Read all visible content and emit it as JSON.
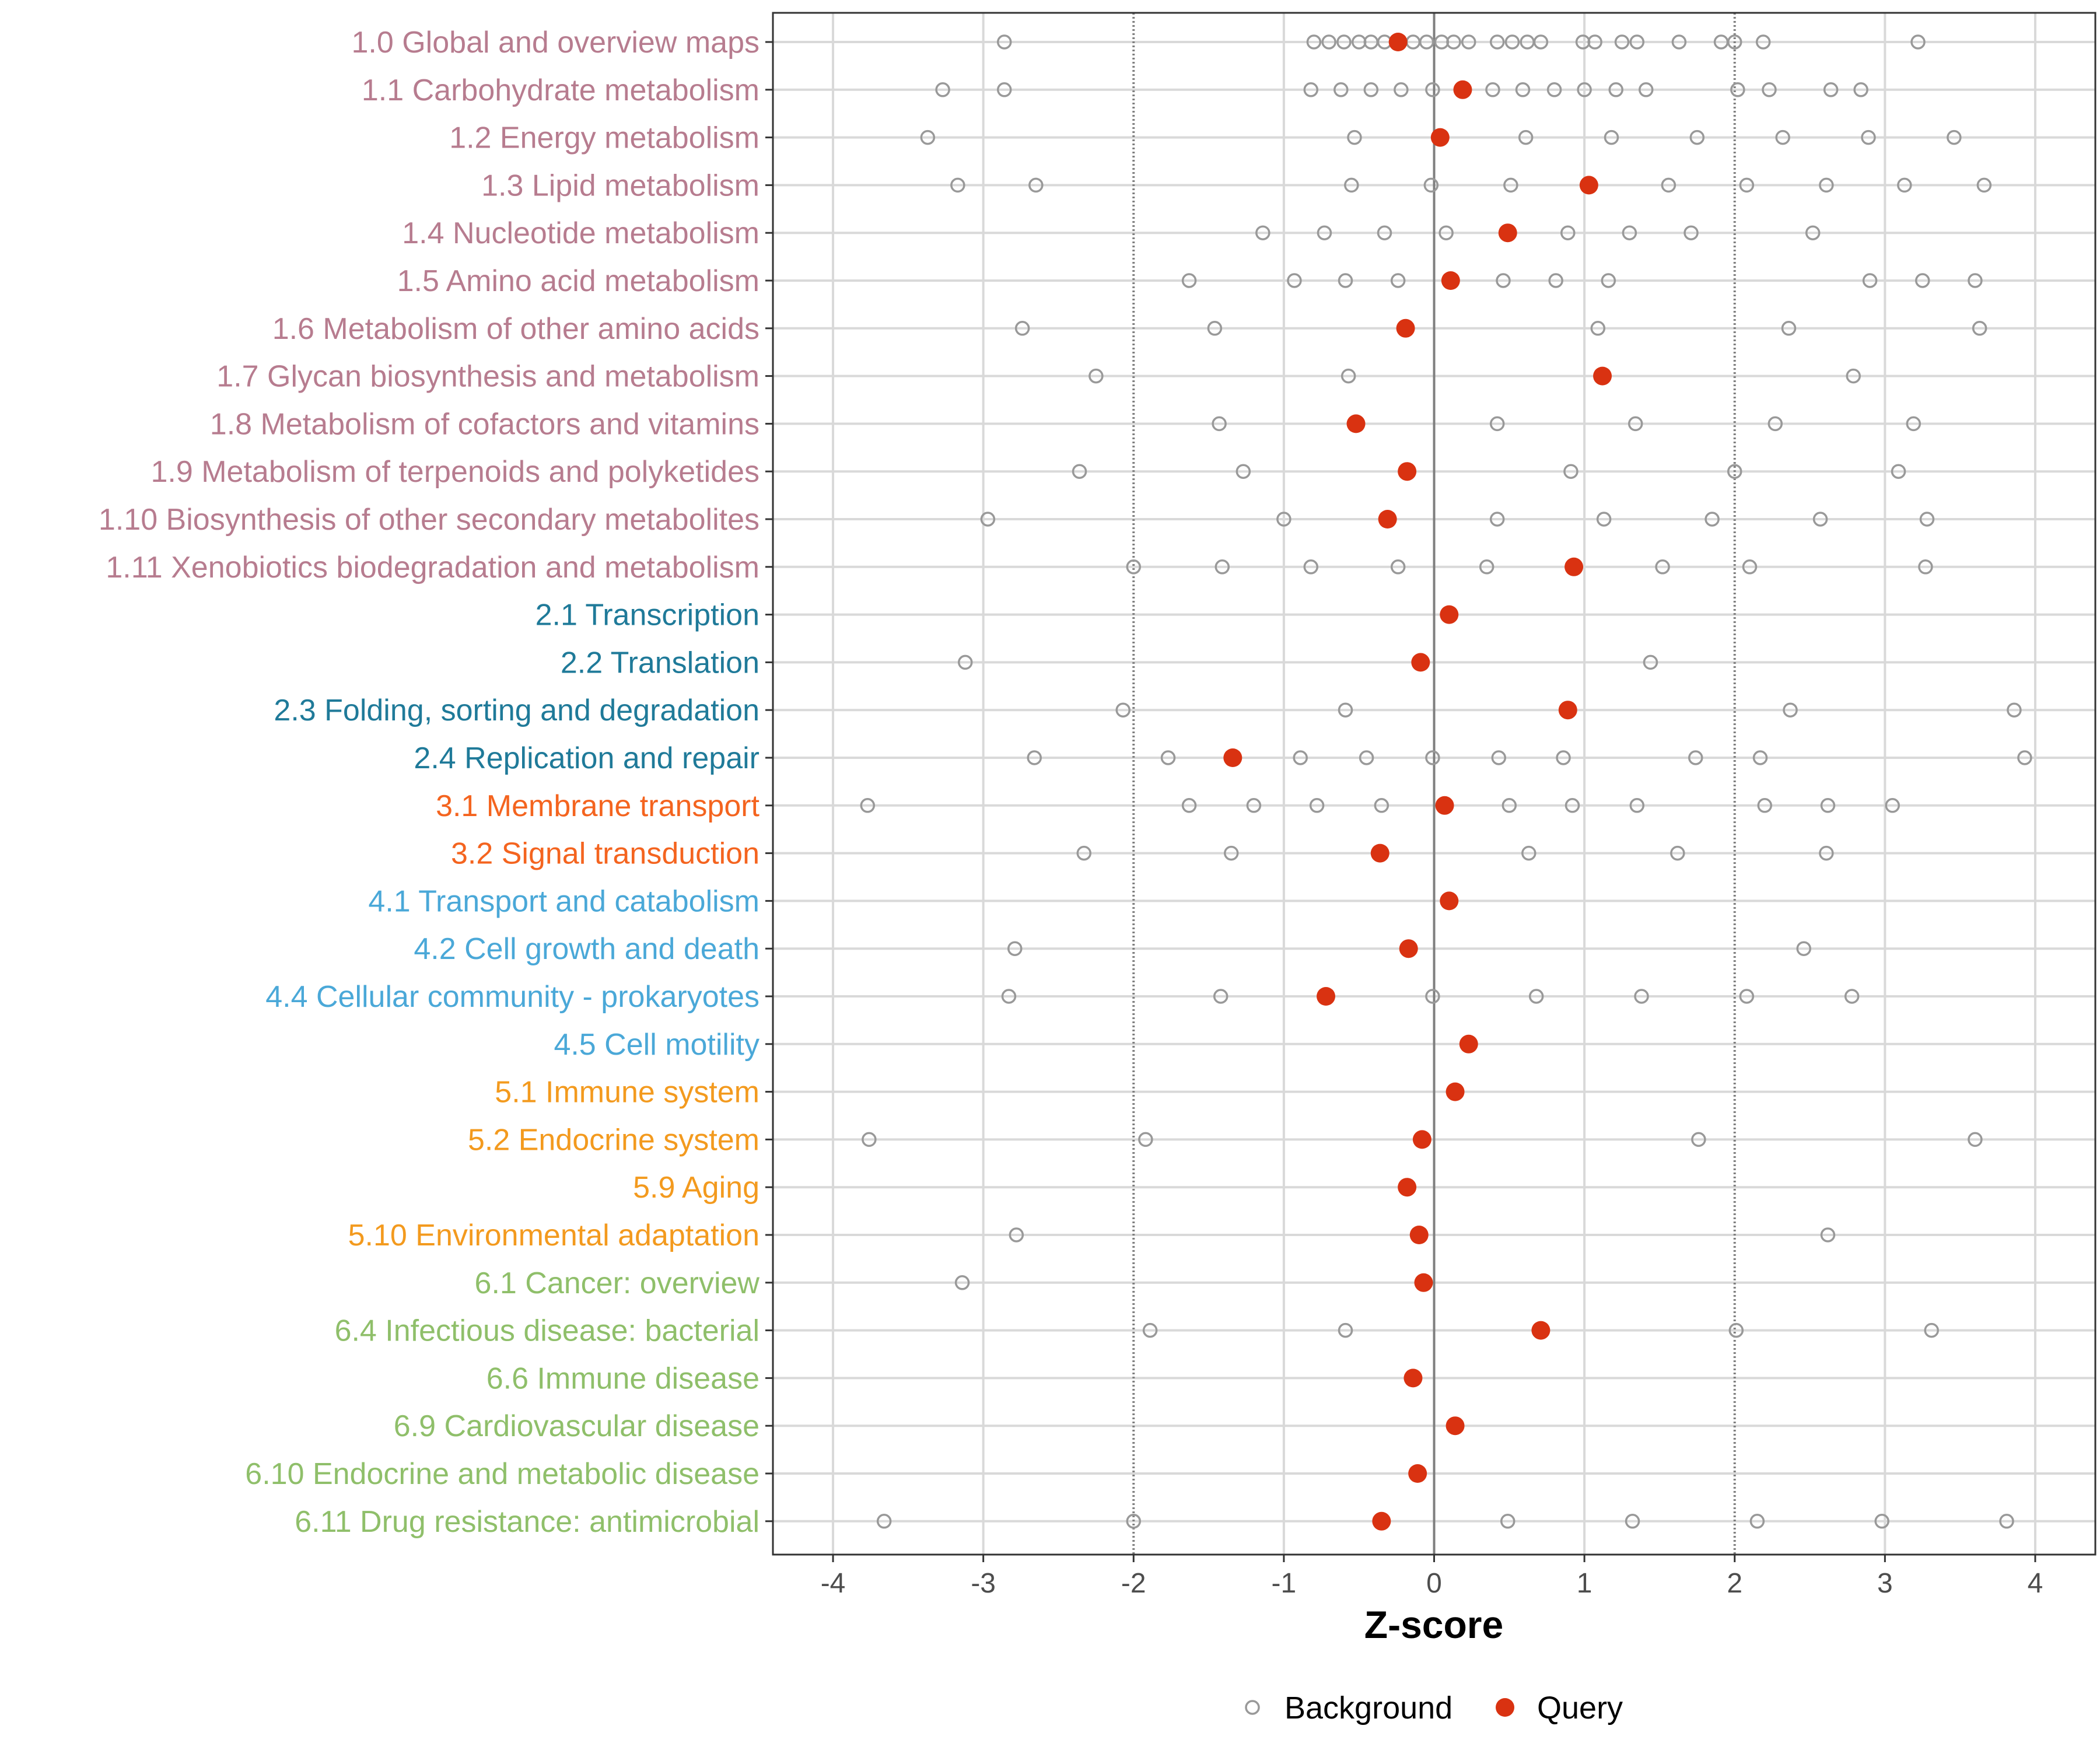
{
  "chart_data": {
    "type": "scatter",
    "xlabel": "Z-score",
    "xlim": [
      -4.4,
      4.4
    ],
    "xticks": [
      -4,
      -3,
      -2,
      -1,
      0,
      1,
      2,
      3,
      4
    ],
    "xtick_labels": [
      "-4",
      "-3",
      "-2",
      "-1",
      "0",
      "1",
      "2",
      "3",
      "4"
    ],
    "reference_lines": {
      "solid": [
        0
      ],
      "dotted": [
        -2,
        2
      ]
    },
    "grid": true,
    "legend": {
      "placement": "bottom",
      "entries": [
        {
          "key": "background",
          "label": "Background",
          "marker": "open-circle"
        },
        {
          "key": "query",
          "label": "Query",
          "marker": "filled-circle"
        }
      ]
    },
    "group_colors": {
      "1": "#b77c8f",
      "2": "#1f7a99",
      "3": "#f4641f",
      "4": "#4aa8d8",
      "5": "#f39a1e",
      "6": "#8fbf6a"
    },
    "colors": {
      "background": "#999999",
      "query": "#d93211",
      "grid": "#d9d9d9",
      "zero": "#7f7f7f",
      "dotted": "#7f7f7f"
    },
    "categories": [
      {
        "label": "1.0 Global and overview maps",
        "group": "1",
        "query": -0.24,
        "background": [
          -2.86,
          -0.8,
          -0.7,
          -0.6,
          -0.5,
          -0.42,
          -0.33,
          -0.14,
          -0.05,
          0.05,
          0.13,
          0.23,
          0.42,
          0.52,
          0.62,
          0.71,
          0.99,
          1.07,
          1.25,
          1.35,
          1.63,
          1.91,
          2.0,
          2.19,
          3.22
        ]
      },
      {
        "label": "1.1 Carbohydrate metabolism",
        "group": "1",
        "query": 0.19,
        "background": [
          -3.27,
          -2.86,
          -0.82,
          -0.62,
          -0.42,
          -0.22,
          -0.01,
          0.39,
          0.59,
          0.8,
          1.0,
          1.21,
          1.41,
          2.02,
          2.23,
          2.64,
          2.84
        ]
      },
      {
        "label": "1.2 Energy metabolism",
        "group": "1",
        "query": 0.04,
        "background": [
          -3.37,
          -0.53,
          0.61,
          1.18,
          1.75,
          2.32,
          2.89,
          3.46
        ]
      },
      {
        "label": "1.3 Lipid metabolism",
        "group": "1",
        "query": 1.03,
        "background": [
          -3.17,
          -2.65,
          -0.55,
          -0.02,
          0.51,
          1.56,
          2.08,
          2.61,
          3.13,
          3.66
        ]
      },
      {
        "label": "1.4 Nucleotide metabolism",
        "group": "1",
        "query": 0.49,
        "background": [
          -1.14,
          -0.73,
          -0.33,
          0.08,
          0.89,
          1.3,
          1.71,
          2.52
        ]
      },
      {
        "label": "1.5 Amino acid metabolism",
        "group": "1",
        "query": 0.11,
        "background": [
          -1.63,
          -0.93,
          -0.59,
          -0.24,
          0.46,
          0.81,
          1.16,
          2.9,
          3.25,
          3.6
        ]
      },
      {
        "label": "1.6 Metabolism of other amino acids",
        "group": "1",
        "query": -0.19,
        "background": [
          -2.74,
          -1.46,
          1.09,
          2.36,
          3.63
        ]
      },
      {
        "label": "1.7 Glycan biosynthesis and metabolism",
        "group": "1",
        "query": 1.12,
        "background": [
          -2.25,
          -0.57,
          2.79
        ]
      },
      {
        "label": "1.8 Metabolism of cofactors and vitamins",
        "group": "1",
        "query": -0.52,
        "background": [
          -1.43,
          0.42,
          1.34,
          2.27,
          3.19
        ]
      },
      {
        "label": "1.9 Metabolism of terpenoids and polyketides",
        "group": "1",
        "query": -0.18,
        "background": [
          -2.36,
          -1.27,
          0.91,
          2.0,
          3.09
        ]
      },
      {
        "label": "1.10 Biosynthesis of other secondary metabolites",
        "group": "1",
        "query": -0.31,
        "background": [
          -2.97,
          -1.0,
          0.42,
          1.13,
          1.85,
          2.57,
          3.28
        ]
      },
      {
        "label": "1.11 Xenobiotics biodegradation and metabolism",
        "group": "1",
        "query": 0.93,
        "background": [
          -2.0,
          -1.41,
          -0.82,
          -0.24,
          0.35,
          1.52,
          2.1,
          3.27
        ]
      },
      {
        "label": "2.1 Transcription",
        "group": "2",
        "query": 0.1,
        "background": []
      },
      {
        "label": "2.2 Translation",
        "group": "2",
        "query": -0.09,
        "background": [
          -3.12,
          1.44
        ]
      },
      {
        "label": "2.3 Folding, sorting and degradation",
        "group": "2",
        "query": 0.89,
        "background": [
          -2.07,
          -0.59,
          2.37,
          3.86
        ]
      },
      {
        "label": "2.4 Replication and repair",
        "group": "2",
        "query": -1.34,
        "background": [
          -2.66,
          -1.77,
          -0.89,
          -0.45,
          -0.01,
          0.43,
          0.86,
          1.74,
          2.17,
          3.93
        ]
      },
      {
        "label": "3.1 Membrane transport",
        "group": "3",
        "query": 0.07,
        "background": [
          -3.77,
          -1.63,
          -1.2,
          -0.78,
          -0.35,
          0.5,
          0.92,
          1.35,
          2.2,
          2.62,
          3.05
        ]
      },
      {
        "label": "3.2 Signal transduction",
        "group": "3",
        "query": -0.36,
        "background": [
          -2.33,
          -1.35,
          0.63,
          1.62,
          2.61
        ]
      },
      {
        "label": "4.1 Transport and catabolism",
        "group": "4",
        "query": 0.1,
        "background": []
      },
      {
        "label": "4.2 Cell growth and death",
        "group": "4",
        "query": -0.17,
        "background": [
          -2.79,
          2.46
        ]
      },
      {
        "label": "4.4 Cellular community - prokaryotes",
        "group": "4",
        "query": -0.72,
        "background": [
          -2.83,
          -1.42,
          -0.01,
          0.68,
          1.38,
          2.08,
          2.78
        ]
      },
      {
        "label": "4.5 Cell motility",
        "group": "4",
        "query": 0.23,
        "background": []
      },
      {
        "label": "5.1 Immune system",
        "group": "5",
        "query": 0.14,
        "background": []
      },
      {
        "label": "5.2 Endocrine system",
        "group": "5",
        "query": -0.08,
        "background": [
          -3.76,
          -1.92,
          1.76,
          3.6
        ]
      },
      {
        "label": "5.9 Aging",
        "group": "5",
        "query": -0.18,
        "background": []
      },
      {
        "label": "5.10 Environmental adaptation",
        "group": "5",
        "query": -0.1,
        "background": [
          -2.78,
          2.62
        ]
      },
      {
        "label": "6.1 Cancer: overview",
        "group": "6",
        "query": -0.07,
        "background": [
          -3.14
        ]
      },
      {
        "label": "6.4 Infectious disease: bacterial",
        "group": "6",
        "query": 0.71,
        "background": [
          -1.89,
          -0.59,
          2.01,
          3.31
        ]
      },
      {
        "label": "6.6 Immune disease",
        "group": "6",
        "query": -0.14,
        "background": []
      },
      {
        "label": "6.9 Cardiovascular disease",
        "group": "6",
        "query": 0.14,
        "background": []
      },
      {
        "label": "6.10 Endocrine and metabolic disease",
        "group": "6",
        "query": -0.11,
        "background": []
      },
      {
        "label": "6.11 Drug resistance: antimicrobial",
        "group": "6",
        "query": -0.35,
        "background": [
          -3.66,
          -2.0,
          0.49,
          1.32,
          2.15,
          2.98,
          3.81
        ]
      }
    ]
  }
}
